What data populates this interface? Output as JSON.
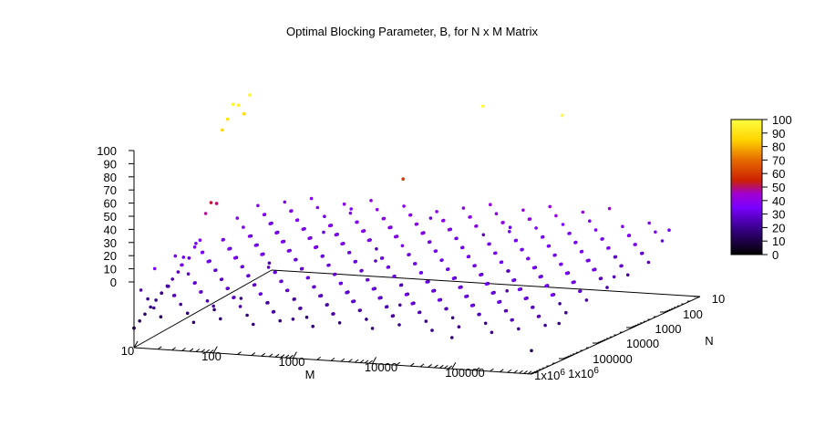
{
  "chart_data": {
    "type": "scatter",
    "title": "Optimal Blocking Parameter, B, for N x M Matrix",
    "xlabel": "M",
    "ylabel": "N",
    "zlabel": "",
    "x_scale": "log",
    "y_scale": "log",
    "x_ticks": [
      "10",
      "100",
      "1000",
      "10000",
      "100000",
      "1x10^6"
    ],
    "y_ticks": [
      "10",
      "100",
      "1000",
      "10000",
      "100000",
      "1x10^6"
    ],
    "z_ticks": [
      "0",
      "10",
      "20",
      "30",
      "40",
      "50",
      "60",
      "70",
      "80",
      "90",
      "100"
    ],
    "colorbar_ticks": [
      "0",
      "10",
      "20",
      "30",
      "40",
      "50",
      "60",
      "70",
      "80",
      "90",
      "100"
    ],
    "zlim": [
      0,
      100
    ],
    "colormap": [
      "#000000",
      "#3b0090",
      "#7a00ff",
      "#a200d0",
      "#cc2200",
      "#e66a00",
      "#ffd400",
      "#ffff40"
    ],
    "grid": false,
    "legend": "none",
    "notes_hidden": false,
    "points": [
      {
        "m": 10,
        "n": 10,
        "b": 10
      },
      {
        "m": 10,
        "n": 16,
        "b": 12
      },
      {
        "m": 10,
        "n": 25,
        "b": 14
      },
      {
        "m": 10,
        "n": 40,
        "b": 16
      },
      {
        "m": 10,
        "n": 63,
        "b": 18
      },
      {
        "m": 10,
        "n": 100,
        "b": 20
      },
      {
        "m": 10,
        "n": 160,
        "b": 22
      },
      {
        "m": 10,
        "n": 250,
        "b": 24
      },
      {
        "m": 10,
        "n": 400,
        "b": 26
      },
      {
        "m": 10,
        "n": 630,
        "b": 32
      },
      {
        "m": 10,
        "n": 1000,
        "b": 30
      },
      {
        "m": 10,
        "n": 1600,
        "b": 34
      },
      {
        "m": 10,
        "n": 2500,
        "b": 36
      },
      {
        "m": 10,
        "n": 4000,
        "b": 48
      },
      {
        "m": 10,
        "n": 6300,
        "b": 52
      },
      {
        "m": 10,
        "n": 10000,
        "b": 50
      },
      {
        "m": 10,
        "n": 16000,
        "b": 86
      },
      {
        "m": 10,
        "n": 25000,
        "b": 90
      },
      {
        "m": 10,
        "n": 40000,
        "b": 96
      },
      {
        "m": 10,
        "n": 63000,
        "b": 94
      },
      {
        "m": 10,
        "n": 100000,
        "b": 88
      },
      {
        "m": 10,
        "n": 160000,
        "b": 96
      },
      {
        "m": 100,
        "n": 10,
        "b": 24
      },
      {
        "m": 100,
        "n": 100,
        "b": 20
      },
      {
        "m": 100,
        "n": 1000,
        "b": 28
      },
      {
        "m": 100,
        "n": 10000,
        "b": 24
      },
      {
        "m": 100,
        "n": 100000,
        "b": 30
      },
      {
        "m": 100,
        "n": 1000000,
        "b": 34
      },
      {
        "m": 1000,
        "n": 10,
        "b": 20
      },
      {
        "m": 1000,
        "n": 100,
        "b": 24
      },
      {
        "m": 1000,
        "n": 1000,
        "b": 18
      },
      {
        "m": 1000,
        "n": 10000,
        "b": 26
      },
      {
        "m": 1000,
        "n": 100000,
        "b": 60
      },
      {
        "m": 1000,
        "n": 1000000,
        "b": 32
      },
      {
        "m": 10000,
        "n": 10,
        "b": 18
      },
      {
        "m": 10000,
        "n": 100,
        "b": 22
      },
      {
        "m": 10000,
        "n": 1000,
        "b": 26
      },
      {
        "m": 10000,
        "n": 10000,
        "b": 20
      },
      {
        "m": 10000,
        "n": 100000,
        "b": 100
      },
      {
        "m": 10000,
        "n": 1000000,
        "b": 30
      },
      {
        "m": 100000,
        "n": 10,
        "b": 16
      },
      {
        "m": 100000,
        "n": 100,
        "b": 20
      },
      {
        "m": 100000,
        "n": 1000,
        "b": 24
      },
      {
        "m": 100000,
        "n": 10000,
        "b": 28
      },
      {
        "m": 100000,
        "n": 100000,
        "b": 98
      },
      {
        "m": 100000,
        "n": 1000000,
        "b": 36
      },
      {
        "m": 1000000,
        "n": 10,
        "b": 12
      },
      {
        "m": 1000000,
        "n": 100,
        "b": 18
      },
      {
        "m": 1000000,
        "n": 1000,
        "b": 22
      },
      {
        "m": 1000000,
        "n": 10000,
        "b": 26
      },
      {
        "m": 1000000,
        "n": 100000,
        "b": 30
      },
      {
        "m": 1000000,
        "n": 1000000,
        "b": 34
      }
    ]
  }
}
